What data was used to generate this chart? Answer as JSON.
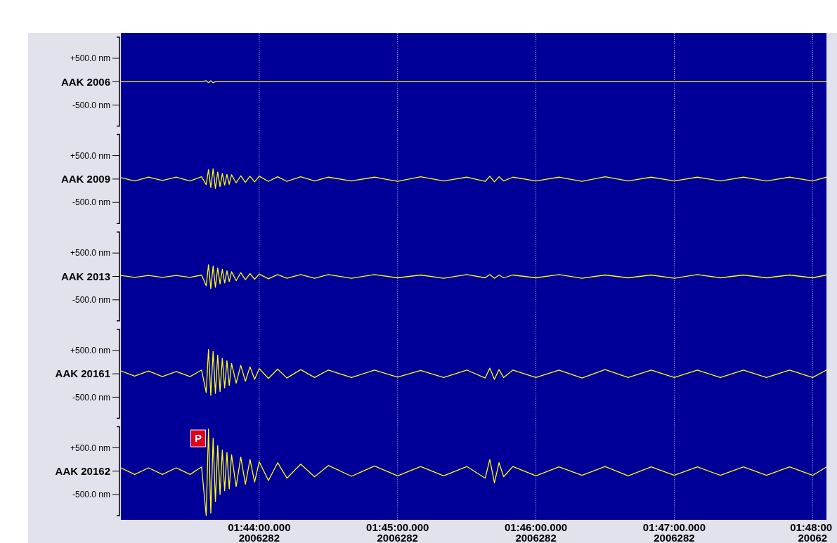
{
  "chart_data": [
    {
      "type": "line",
      "tick_labels": "y",
      "grid": "x",
      "x": [
        "2006-10-09T01:43:00",
        "2006-10-09T01:43:06",
        "2006-10-09T01:43:12",
        "2006-10-09T01:43:18",
        "2006-10-09T01:43:24",
        "2006-10-09T01:43:30",
        "2006-10-09T01:43:35",
        "2006-10-09T01:43:37",
        "2006-10-09T01:43:38",
        "2006-10-09T01:43:39",
        "2006-10-09T01:43:40",
        "2006-10-09T01:43:41",
        "2006-10-09T01:43:42",
        "2006-10-09T01:43:43",
        "2006-10-09T01:43:44",
        "2006-10-09T01:43:45",
        "2006-10-09T01:43:46",
        "2006-10-09T01:43:47",
        "2006-10-09T01:43:48",
        "2006-10-09T01:43:50",
        "2006-10-09T01:43:52",
        "2006-10-09T01:43:54",
        "2006-10-09T01:43:56",
        "2006-10-09T01:43:58",
        "2006-10-09T01:44:00",
        "2006-10-09T01:44:04",
        "2006-10-09T01:44:08",
        "2006-10-09T01:44:12",
        "2006-10-09T01:44:18",
        "2006-10-09T01:44:24",
        "2006-10-09T01:44:30",
        "2006-10-09T01:44:40",
        "2006-10-09T01:44:50",
        "2006-10-09T01:45:00",
        "2006-10-09T01:45:10",
        "2006-10-09T01:45:20",
        "2006-10-09T01:45:30",
        "2006-10-09T01:45:38",
        "2006-10-09T01:45:40",
        "2006-10-09T01:45:42",
        "2006-10-09T01:45:44",
        "2006-10-09T01:45:46",
        "2006-10-09T01:45:50",
        "2006-10-09T01:46:00",
        "2006-10-09T01:46:10",
        "2006-10-09T01:46:20",
        "2006-10-09T01:46:30",
        "2006-10-09T01:46:40",
        "2006-10-09T01:46:50",
        "2006-10-09T01:47:00",
        "2006-10-09T01:47:10",
        "2006-10-09T01:47:20",
        "2006-10-09T01:47:30",
        "2006-10-09T01:47:40",
        "2006-10-09T01:47:50",
        "2006-10-09T01:48:00",
        "2006-10-09T01:48:06"
      ],
      "xlim": [
        "2006-10-09T01:43:00",
        "2006-10-09T01:48:06"
      ],
      "xticks": [
        {
          "value": "2006-10-09T01:44:00",
          "label": null
        },
        {
          "value": "2006-10-09T01:45:00",
          "label": null
        },
        {
          "value": "2006-10-09T01:46:00",
          "label": null
        },
        {
          "value": "2006-10-09T01:47:00",
          "label": null
        },
        {
          "value": "2006-10-09T01:48:00",
          "label": null
        }
      ],
      "ylim": [
        -950,
        950
      ],
      "yticks": [
        {
          "value": 500,
          "label": "+500.0 nm"
        },
        {
          "value": 0,
          "label": "AAK 2006"
        },
        {
          "value": -500,
          "label": "-500.0 nm"
        }
      ],
      "series": [
        {
          "color": "#ffff00",
          "values": [
            0,
            0,
            0,
            0,
            0,
            0,
            0,
            20,
            -20,
            20,
            -20,
            0,
            0,
            0,
            0,
            0,
            0,
            0,
            0,
            0,
            0,
            0,
            0,
            0,
            0,
            0,
            0,
            0,
            0,
            0,
            0,
            0,
            0,
            0,
            0,
            0,
            0,
            0,
            0,
            0,
            0,
            0,
            0,
            0,
            0,
            0,
            0,
            0,
            0,
            0,
            0,
            0,
            0,
            0,
            0,
            0,
            0
          ]
        }
      ]
    },
    {
      "type": "line",
      "tick_labels": "y",
      "grid": "x",
      "x": [
        "2006-10-09T01:43:00",
        "2006-10-09T01:43:06",
        "2006-10-09T01:43:12",
        "2006-10-09T01:43:18",
        "2006-10-09T01:43:24",
        "2006-10-09T01:43:30",
        "2006-10-09T01:43:35",
        "2006-10-09T01:43:37",
        "2006-10-09T01:43:38",
        "2006-10-09T01:43:39",
        "2006-10-09T01:43:40",
        "2006-10-09T01:43:41",
        "2006-10-09T01:43:42",
        "2006-10-09T01:43:43",
        "2006-10-09T01:43:44",
        "2006-10-09T01:43:45",
        "2006-10-09T01:43:46",
        "2006-10-09T01:43:47",
        "2006-10-09T01:43:48",
        "2006-10-09T01:43:50",
        "2006-10-09T01:43:52",
        "2006-10-09T01:43:54",
        "2006-10-09T01:43:56",
        "2006-10-09T01:43:58",
        "2006-10-09T01:44:00",
        "2006-10-09T01:44:04",
        "2006-10-09T01:44:08",
        "2006-10-09T01:44:12",
        "2006-10-09T01:44:18",
        "2006-10-09T01:44:24",
        "2006-10-09T01:44:30",
        "2006-10-09T01:44:40",
        "2006-10-09T01:44:50",
        "2006-10-09T01:45:00",
        "2006-10-09T01:45:10",
        "2006-10-09T01:45:20",
        "2006-10-09T01:45:30",
        "2006-10-09T01:45:38",
        "2006-10-09T01:45:40",
        "2006-10-09T01:45:42",
        "2006-10-09T01:45:44",
        "2006-10-09T01:45:46",
        "2006-10-09T01:45:50",
        "2006-10-09T01:46:00",
        "2006-10-09T01:46:10",
        "2006-10-09T01:46:20",
        "2006-10-09T01:46:30",
        "2006-10-09T01:46:40",
        "2006-10-09T01:46:50",
        "2006-10-09T01:47:00",
        "2006-10-09T01:47:10",
        "2006-10-09T01:47:20",
        "2006-10-09T01:47:30",
        "2006-10-09T01:47:40",
        "2006-10-09T01:47:50",
        "2006-10-09T01:48:00",
        "2006-10-09T01:48:06"
      ],
      "xlim": [
        "2006-10-09T01:43:00",
        "2006-10-09T01:48:06"
      ],
      "xticks": [
        {
          "value": "2006-10-09T01:44:00",
          "label": null
        },
        {
          "value": "2006-10-09T01:45:00",
          "label": null
        },
        {
          "value": "2006-10-09T01:46:00",
          "label": null
        },
        {
          "value": "2006-10-09T01:47:00",
          "label": null
        },
        {
          "value": "2006-10-09T01:48:00",
          "label": null
        }
      ],
      "ylim": [
        -950,
        950
      ],
      "yticks": [
        {
          "value": 500,
          "label": "+500.0 nm"
        },
        {
          "value": 0,
          "label": "AAK 2009"
        },
        {
          "value": -500,
          "label": "-500.0 nm"
        }
      ],
      "series": [
        {
          "color": "#ffff00",
          "values": [
            30,
            -40,
            40,
            -30,
            40,
            -40,
            50,
            -120,
            200,
            -180,
            220,
            -200,
            150,
            -160,
            120,
            -130,
            100,
            -110,
            90,
            -80,
            70,
            -70,
            60,
            -60,
            60,
            -50,
            50,
            -50,
            50,
            -40,
            40,
            -40,
            40,
            -50,
            50,
            -40,
            40,
            -50,
            60,
            -60,
            50,
            -40,
            40,
            -40,
            40,
            -50,
            50,
            -40,
            40,
            -40,
            40,
            -40,
            40,
            -40,
            40,
            -40,
            40
          ]
        }
      ]
    },
    {
      "type": "line",
      "tick_labels": "y",
      "grid": "x",
      "x": [
        "2006-10-09T01:43:00",
        "2006-10-09T01:43:06",
        "2006-10-09T01:43:12",
        "2006-10-09T01:43:18",
        "2006-10-09T01:43:24",
        "2006-10-09T01:43:30",
        "2006-10-09T01:43:35",
        "2006-10-09T01:43:37",
        "2006-10-09T01:43:38",
        "2006-10-09T01:43:39",
        "2006-10-09T01:43:40",
        "2006-10-09T01:43:41",
        "2006-10-09T01:43:42",
        "2006-10-09T01:43:43",
        "2006-10-09T01:43:44",
        "2006-10-09T01:43:45",
        "2006-10-09T01:43:46",
        "2006-10-09T01:43:47",
        "2006-10-09T01:43:48",
        "2006-10-09T01:43:50",
        "2006-10-09T01:43:52",
        "2006-10-09T01:43:54",
        "2006-10-09T01:43:56",
        "2006-10-09T01:43:58",
        "2006-10-09T01:44:00",
        "2006-10-09T01:44:04",
        "2006-10-09T01:44:08",
        "2006-10-09T01:44:12",
        "2006-10-09T01:44:18",
        "2006-10-09T01:44:24",
        "2006-10-09T01:44:30",
        "2006-10-09T01:44:40",
        "2006-10-09T01:44:50",
        "2006-10-09T01:45:00",
        "2006-10-09T01:45:10",
        "2006-10-09T01:45:20",
        "2006-10-09T01:45:30",
        "2006-10-09T01:45:38",
        "2006-10-09T01:45:40",
        "2006-10-09T01:45:42",
        "2006-10-09T01:45:44",
        "2006-10-09T01:45:46",
        "2006-10-09T01:45:50",
        "2006-10-09T01:46:00",
        "2006-10-09T01:46:10",
        "2006-10-09T01:46:20",
        "2006-10-09T01:46:30",
        "2006-10-09T01:46:40",
        "2006-10-09T01:46:50",
        "2006-10-09T01:47:00",
        "2006-10-09T01:47:10",
        "2006-10-09T01:47:20",
        "2006-10-09T01:47:30",
        "2006-10-09T01:47:40",
        "2006-10-09T01:47:50",
        "2006-10-09T01:48:00",
        "2006-10-09T01:48:06"
      ],
      "xlim": [
        "2006-10-09T01:43:00",
        "2006-10-09T01:48:06"
      ],
      "xticks": [
        {
          "value": "2006-10-09T01:44:00",
          "label": null
        },
        {
          "value": "2006-10-09T01:45:00",
          "label": null
        },
        {
          "value": "2006-10-09T01:46:00",
          "label": null
        },
        {
          "value": "2006-10-09T01:47:00",
          "label": null
        },
        {
          "value": "2006-10-09T01:48:00",
          "label": null
        }
      ],
      "ylim": [
        -950,
        950
      ],
      "yticks": [
        {
          "value": 500,
          "label": "+500.0 nm"
        },
        {
          "value": 0,
          "label": "AAK 2013"
        },
        {
          "value": -500,
          "label": "-500.0 nm"
        }
      ],
      "series": [
        {
          "color": "#ffff00",
          "values": [
            20,
            -20,
            20,
            -20,
            20,
            -20,
            30,
            -200,
            250,
            -260,
            220,
            -230,
            180,
            -160,
            150,
            -140,
            120,
            -110,
            100,
            -90,
            80,
            -70,
            60,
            -60,
            50,
            -50,
            40,
            -40,
            40,
            -40,
            40,
            -40,
            40,
            -30,
            30,
            -40,
            40,
            -30,
            40,
            -40,
            30,
            -30,
            30,
            -30,
            40,
            -40,
            30,
            -30,
            30,
            -40,
            40,
            -30,
            30,
            -30,
            30,
            -30,
            30
          ]
        }
      ]
    },
    {
      "type": "line",
      "tick_labels": "y",
      "grid": "x",
      "x": [
        "2006-10-09T01:43:00",
        "2006-10-09T01:43:06",
        "2006-10-09T01:43:12",
        "2006-10-09T01:43:18",
        "2006-10-09T01:43:24",
        "2006-10-09T01:43:30",
        "2006-10-09T01:43:35",
        "2006-10-09T01:43:37",
        "2006-10-09T01:43:38",
        "2006-10-09T01:43:39",
        "2006-10-09T01:43:40",
        "2006-10-09T01:43:41",
        "2006-10-09T01:43:42",
        "2006-10-09T01:43:43",
        "2006-10-09T01:43:44",
        "2006-10-09T01:43:45",
        "2006-10-09T01:43:46",
        "2006-10-09T01:43:47",
        "2006-10-09T01:43:48",
        "2006-10-09T01:43:50",
        "2006-10-09T01:43:52",
        "2006-10-09T01:43:54",
        "2006-10-09T01:43:56",
        "2006-10-09T01:43:58",
        "2006-10-09T01:44:00",
        "2006-10-09T01:44:04",
        "2006-10-09T01:44:08",
        "2006-10-09T01:44:12",
        "2006-10-09T01:44:18",
        "2006-10-09T01:44:24",
        "2006-10-09T01:44:30",
        "2006-10-09T01:44:40",
        "2006-10-09T01:44:50",
        "2006-10-09T01:45:00",
        "2006-10-09T01:45:10",
        "2006-10-09T01:45:20",
        "2006-10-09T01:45:30",
        "2006-10-09T01:45:38",
        "2006-10-09T01:45:40",
        "2006-10-09T01:45:42",
        "2006-10-09T01:45:44",
        "2006-10-09T01:45:46",
        "2006-10-09T01:45:50",
        "2006-10-09T01:46:00",
        "2006-10-09T01:46:10",
        "2006-10-09T01:46:20",
        "2006-10-09T01:46:30",
        "2006-10-09T01:46:40",
        "2006-10-09T01:46:50",
        "2006-10-09T01:47:00",
        "2006-10-09T01:47:10",
        "2006-10-09T01:47:20",
        "2006-10-09T01:47:30",
        "2006-10-09T01:47:40",
        "2006-10-09T01:47:50",
        "2006-10-09T01:48:00",
        "2006-10-09T01:48:06"
      ],
      "xlim": [
        "2006-10-09T01:43:00",
        "2006-10-09T01:48:06"
      ],
      "xticks": [
        {
          "value": "2006-10-09T01:44:00",
          "label": null
        },
        {
          "value": "2006-10-09T01:45:00",
          "label": null
        },
        {
          "value": "2006-10-09T01:46:00",
          "label": null
        },
        {
          "value": "2006-10-09T01:47:00",
          "label": null
        },
        {
          "value": "2006-10-09T01:48:00",
          "label": null
        }
      ],
      "ylim": [
        -950,
        950
      ],
      "yticks": [
        {
          "value": 500,
          "label": "+500.0 nm"
        },
        {
          "value": 0,
          "label": "AAK 20161"
        },
        {
          "value": -500,
          "label": "-500.0 nm"
        }
      ],
      "series": [
        {
          "color": "#ffff00",
          "values": [
            60,
            -50,
            60,
            -60,
            50,
            -60,
            80,
            -400,
            520,
            -460,
            480,
            -420,
            400,
            -380,
            330,
            -300,
            280,
            -250,
            220,
            -200,
            180,
            -160,
            150,
            -120,
            110,
            -100,
            100,
            -90,
            90,
            -80,
            80,
            -80,
            80,
            -70,
            70,
            -80,
            80,
            -90,
            120,
            -120,
            90,
            -80,
            80,
            -80,
            80,
            -90,
            90,
            -80,
            80,
            -80,
            80,
            -80,
            80,
            -80,
            80,
            -80,
            80
          ]
        }
      ]
    },
    {
      "type": "line",
      "grid": "x",
      "x": [
        "2006-10-09T01:43:00",
        "2006-10-09T01:43:06",
        "2006-10-09T01:43:12",
        "2006-10-09T01:43:18",
        "2006-10-09T01:43:24",
        "2006-10-09T01:43:30",
        "2006-10-09T01:43:35",
        "2006-10-09T01:43:37",
        "2006-10-09T01:43:38",
        "2006-10-09T01:43:39",
        "2006-10-09T01:43:40",
        "2006-10-09T01:43:41",
        "2006-10-09T01:43:42",
        "2006-10-09T01:43:43",
        "2006-10-09T01:43:44",
        "2006-10-09T01:43:45",
        "2006-10-09T01:43:46",
        "2006-10-09T01:43:47",
        "2006-10-09T01:43:48",
        "2006-10-09T01:43:50",
        "2006-10-09T01:43:52",
        "2006-10-09T01:43:54",
        "2006-10-09T01:43:56",
        "2006-10-09T01:43:58",
        "2006-10-09T01:44:00",
        "2006-10-09T01:44:04",
        "2006-10-09T01:44:08",
        "2006-10-09T01:44:12",
        "2006-10-09T01:44:18",
        "2006-10-09T01:44:24",
        "2006-10-09T01:44:30",
        "2006-10-09T01:44:40",
        "2006-10-09T01:44:50",
        "2006-10-09T01:45:00",
        "2006-10-09T01:45:10",
        "2006-10-09T01:45:20",
        "2006-10-09T01:45:30",
        "2006-10-09T01:45:38",
        "2006-10-09T01:45:40",
        "2006-10-09T01:45:42",
        "2006-10-09T01:45:44",
        "2006-10-09T01:45:46",
        "2006-10-09T01:45:50",
        "2006-10-09T01:46:00",
        "2006-10-09T01:46:10",
        "2006-10-09T01:46:20",
        "2006-10-09T01:46:30",
        "2006-10-09T01:46:40",
        "2006-10-09T01:46:50",
        "2006-10-09T01:47:00",
        "2006-10-09T01:47:10",
        "2006-10-09T01:47:20",
        "2006-10-09T01:47:30",
        "2006-10-09T01:47:40",
        "2006-10-09T01:47:50",
        "2006-10-09T01:48:00",
        "2006-10-09T01:48:06"
      ],
      "xlim": [
        "2006-10-09T01:43:00",
        "2006-10-09T01:48:06"
      ],
      "xticks": [
        {
          "value": "2006-10-09T01:44:00",
          "label": "01:44:00.000"
        },
        {
          "value": "2006-10-09T01:45:00",
          "label": "01:45:00.000"
        },
        {
          "value": "2006-10-09T01:46:00",
          "label": "01:46:00.000"
        },
        {
          "value": "2006-10-09T01:47:00",
          "label": "01:47:00.000"
        },
        {
          "value": "2006-10-09T01:48:00",
          "label": "01:48:00"
        }
      ],
      "ylim": [
        -950,
        950
      ],
      "yticks": [
        {
          "value": 500,
          "label": "+500.0 nm"
        },
        {
          "value": 0,
          "label": "AAK 20162"
        },
        {
          "value": -500,
          "label": "-500.0 nm"
        }
      ],
      "annotations": [
        {
          "text": "P",
          "x": "2006-10-09T01:43:37",
          "y": 700
        },
        "2006282",
        "2006282",
        "2006282",
        "2006282",
        "20062"
      ],
      "series": [
        {
          "color": "#ffff00",
          "values": [
            70,
            -70,
            70,
            -70,
            70,
            -70,
            90,
            -950,
            900,
            -900,
            700,
            -650,
            550,
            -500,
            450,
            -420,
            400,
            -380,
            350,
            -330,
            300,
            -280,
            250,
            -230,
            200,
            -200,
            180,
            -150,
            150,
            -120,
            120,
            -110,
            110,
            -100,
            100,
            -100,
            100,
            -150,
            250,
            -250,
            180,
            -120,
            100,
            -100,
            90,
            -90,
            100,
            -100,
            90,
            -90,
            90,
            -90,
            90,
            -90,
            90,
            -90,
            90
          ]
        }
      ]
    }
  ]
}
